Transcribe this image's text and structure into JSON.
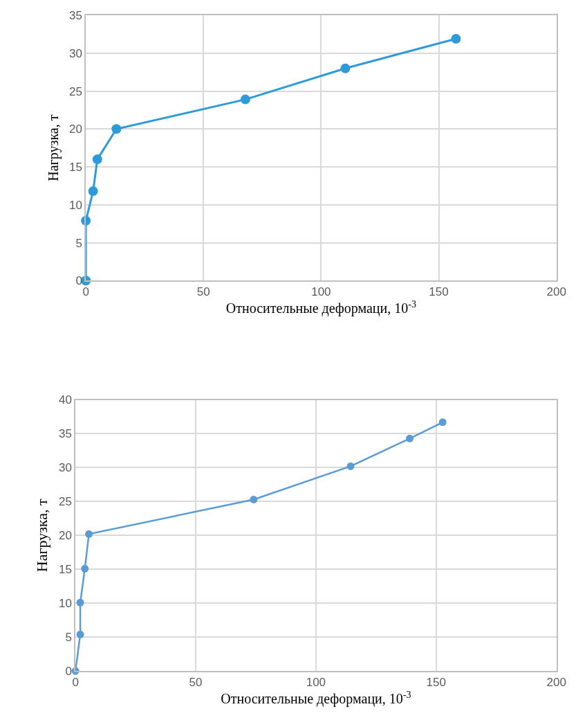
{
  "chart_data": [
    {
      "type": "line",
      "xlabel": "Относительные деформаци, 10$^{-3}$",
      "ylabel": "Нагрузка, т",
      "x": [
        0,
        0,
        3.1,
        4.9,
        13,
        67.8,
        110.3,
        157.3
      ],
      "series": [
        {
          "color": "#2e9ad8",
          "values": [
            0,
            7.9,
            11.8,
            16,
            20,
            23.9,
            28,
            31.9
          ]
        }
      ],
      "xlim": [
        0,
        200
      ],
      "xticks": [
        0,
        50,
        100,
        150,
        200
      ],
      "ylim": [
        0,
        35
      ],
      "yticks": [
        0,
        5,
        10,
        15,
        20,
        25,
        30,
        35
      ],
      "grid": true,
      "marker": "circle",
      "line_style": "solid"
    },
    {
      "type": "line",
      "xlabel": "Относительные деформаци, 10$^{-3}$",
      "ylabel": "Нагрузка, т",
      "x": [
        0,
        2,
        2,
        3.9,
        5.6,
        74.1,
        114.4,
        139,
        152.7
      ],
      "series": [
        {
          "color": "#5b9bd5",
          "values": [
            0,
            5.4,
            10.1,
            15.1,
            20.2,
            25.3,
            30.2,
            34.3,
            36.7
          ]
        }
      ],
      "xlim": [
        0,
        200
      ],
      "xticks": [
        0,
        50,
        100,
        150,
        200
      ],
      "ylim": [
        0,
        40
      ],
      "yticks": [
        0,
        5,
        10,
        15,
        20,
        25,
        30,
        35,
        40
      ],
      "grid": true,
      "marker": "circle",
      "line_style": "solid"
    }
  ]
}
